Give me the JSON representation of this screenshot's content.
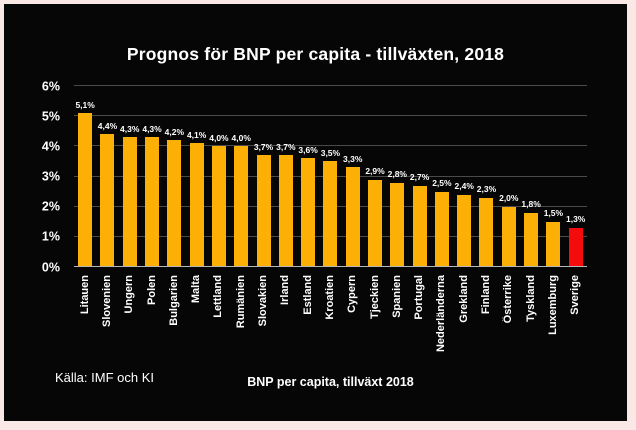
{
  "title": "Prognos för BNP per capita - tillväxten, 2018",
  "source_note": "Källa: IMF och KI",
  "colors": {
    "page_border": "#F9E8E5",
    "background": "#060606",
    "text": "#FFFFFF",
    "bar": "#FCB005",
    "bar_highlight": "#F40B0B",
    "gridline": "#4A4A4A",
    "axis_line": "#B8B8B8"
  },
  "chart_data": {
    "type": "bar",
    "title": "Prognos för BNP per capita - tillväxten, 2018",
    "xlabel": "BNP per capita, tillväxt 2018",
    "ylabel": "",
    "categories": [
      "Litauen",
      "Slovenien",
      "Ungern",
      "Polen",
      "Bulgarien",
      "Malta",
      "Lettland",
      "Rumänien",
      "Slovakien",
      "Irland",
      "Estland",
      "Kroatien",
      "Cypern",
      "Tjeckien",
      "Spanien",
      "Portugal",
      "Nederländerna",
      "Grekland",
      "Finland",
      "Österrike",
      "Tyskland",
      "Luxemburg",
      "Sverige"
    ],
    "values": [
      5.1,
      4.4,
      4.3,
      4.3,
      4.2,
      4.1,
      4.0,
      4.0,
      3.7,
      3.7,
      3.6,
      3.5,
      3.3,
      2.9,
      2.8,
      2.7,
      2.5,
      2.4,
      2.3,
      2.0,
      1.8,
      1.5,
      1.3
    ],
    "value_labels": [
      "5,1%",
      "4,4%",
      "4,3%",
      "4,3%",
      "4,2%",
      "4,1%",
      "4,0%",
      "4,0%",
      "3,7%",
      "3,7%",
      "3,6%",
      "3,5%",
      "3,3%",
      "2,9%",
      "2,8%",
      "2,7%",
      "2,5%",
      "2,4%",
      "2,3%",
      "2,0%",
      "1,8%",
      "1,5%",
      "1,3%"
    ],
    "highlight_index": 22,
    "y_ticks": [
      "0%",
      "1%",
      "2%",
      "3%",
      "4%",
      "5%",
      "6%"
    ],
    "ylim": [
      0,
      6
    ],
    "grid": true,
    "legend": false
  }
}
